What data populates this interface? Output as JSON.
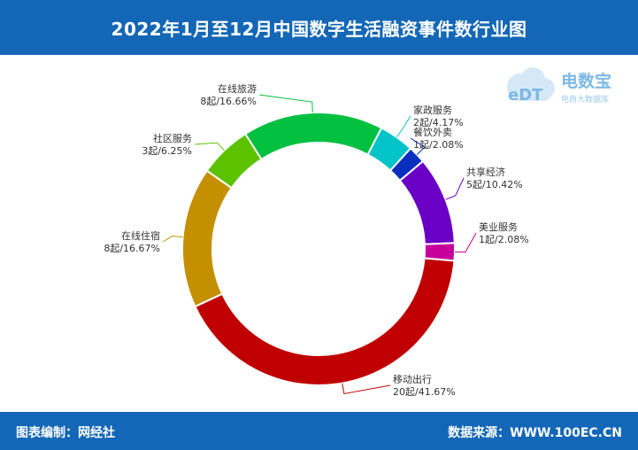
{
  "header": {
    "title": "2022年1月至12月中国数字生活融资事件数行业图"
  },
  "footer": {
    "left": "图表编制：网经社",
    "right": "数据来源：WWW.100EC.CN"
  },
  "logo": {
    "mark": "eDT",
    "name": "电数宝",
    "sub": "电商大数据库"
  },
  "chart_data": {
    "type": "pie",
    "donut": true,
    "title": "2022年1月至12月中国数字生活融资事件数行业图",
    "unit": "起",
    "slices": [
      {
        "name": "家政服务",
        "value": 2,
        "percent": "4.17%",
        "label": "2起/4.17%",
        "color": "#00c4c8"
      },
      {
        "name": "餐饮外卖",
        "value": 1,
        "percent": "2.08%",
        "label": "1起/2.08%",
        "color": "#0a2fbf"
      },
      {
        "name": "共享经济",
        "value": 5,
        "percent": "10.42%",
        "label": "5起/10.42%",
        "color": "#6a00c6"
      },
      {
        "name": "美业服务",
        "value": 1,
        "percent": "2.08%",
        "label": "1起/2.08%",
        "color": "#c8009b"
      },
      {
        "name": "移动出行",
        "value": 20,
        "percent": "41.67%",
        "label": "20起/41.67%",
        "color": "#c00000"
      },
      {
        "name": "在线住宿",
        "value": 8,
        "percent": "16.67%",
        "label": "8起/16.67%",
        "color": "#c49000"
      },
      {
        "name": "社区服务",
        "value": 3,
        "percent": "6.25%",
        "label": "3起/6.25%",
        "color": "#5cc200"
      },
      {
        "name": "在线旅游",
        "value": 8,
        "percent": "16.66%",
        "label": "8起/16.66%",
        "color": "#00c040"
      }
    ]
  }
}
